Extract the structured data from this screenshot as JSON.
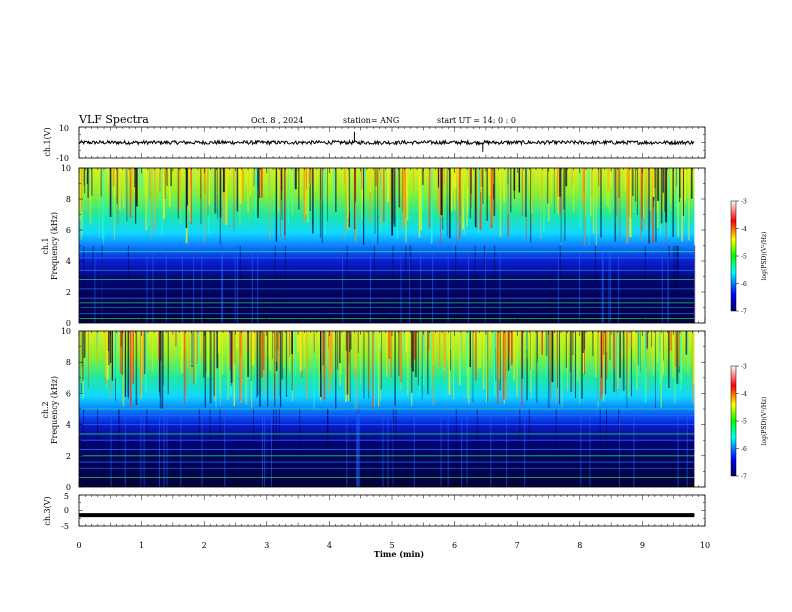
{
  "header": {
    "title": "VLF Spectra",
    "date": "Oct. 8 , 2024",
    "station": "station= ANG",
    "start": "start UT =  14: 0  : 0"
  },
  "chart_data": [
    {
      "type": "line",
      "name": "ch1-waveform",
      "ylabel": "ch.1(V)",
      "ylim": [
        -10,
        10
      ],
      "yticks": [
        "10",
        "-10"
      ],
      "baseline": 0,
      "xlim": [
        0,
        10
      ],
      "data_end_min": 9.83,
      "spikes": [
        {
          "x": 4.4,
          "y": 7
        },
        {
          "x": 6.45,
          "y": -6
        }
      ]
    },
    {
      "type": "heatmap",
      "name": "ch1-spectrogram",
      "ylabel_top": "ch.1",
      "ylabel": "Frequency (kHz)",
      "ylim": [
        0,
        10
      ],
      "yticks": [
        "0",
        "2",
        "4",
        "6",
        "8",
        "10"
      ],
      "xlim": [
        0,
        10
      ],
      "data_end_min": 9.83,
      "lines_khz": [
        0.3,
        0.6,
        1.0,
        1.3,
        1.6,
        2.2,
        2.8,
        3.4,
        4.2,
        4.6,
        5.0
      ],
      "colorbar": {
        "label": "log(PSD)(V²/Hz)",
        "range": [
          -7,
          -3
        ],
        "ticks": [
          "-3",
          "-4",
          "-5",
          "-6",
          "-7"
        ],
        "colors": [
          "#000060",
          "#0000ff",
          "#00ffff",
          "#00ff00",
          "#ffff00",
          "#ff0000",
          "#ffffff"
        ]
      }
    },
    {
      "type": "heatmap",
      "name": "ch2-spectrogram",
      "ylabel_top": "ch.2",
      "ylabel": "Frequency (kHz)",
      "ylim": [
        0,
        10
      ],
      "yticks": [
        "0",
        "2",
        "4",
        "6",
        "8",
        "10"
      ],
      "xlim": [
        0,
        10
      ],
      "data_end_min": 9.83,
      "lines_khz": [
        0.6,
        1.2,
        1.6,
        2.0,
        2.4,
        3.0,
        3.4,
        4.0,
        4.6,
        5.0
      ],
      "colorbar": {
        "label": "log(PSD)(V²/Hz)",
        "range": [
          -7,
          -3
        ],
        "ticks": [
          "-3",
          "-4",
          "-5",
          "-6",
          "-7"
        ],
        "colors": [
          "#000060",
          "#0000ff",
          "#00ffff",
          "#00ff00",
          "#ffff00",
          "#ff0000",
          "#ffffff"
        ]
      }
    },
    {
      "type": "line",
      "name": "ch3-waveform",
      "ylabel": "ch.3(V)",
      "ylim": [
        -5,
        5
      ],
      "yticks": [
        "5",
        "0",
        "-5"
      ],
      "baseline": -1.5,
      "xlim": [
        0,
        10
      ],
      "data_end_min": 9.83,
      "xlabel": "Time (min)",
      "xticks": [
        "0",
        "1",
        "2",
        "3",
        "4",
        "5",
        "6",
        "7",
        "8",
        "9",
        "10"
      ]
    }
  ]
}
